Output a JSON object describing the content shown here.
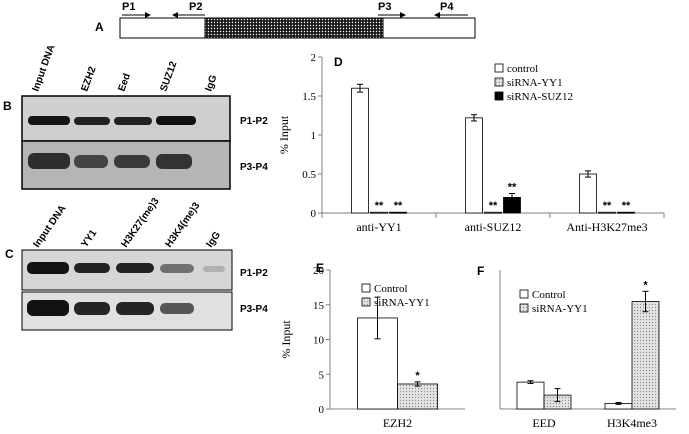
{
  "panel_labels": {
    "a": "A",
    "b": "B",
    "c": "C",
    "d": "D",
    "e": "E",
    "f": "F"
  },
  "primers": [
    "P1",
    "P2",
    "P3",
    "P4"
  ],
  "gel_b": {
    "lanes": [
      "Input DNA",
      "EZH2",
      "Eed",
      "SUZ12",
      "IgG"
    ],
    "rows": [
      "P1-P2",
      "P3-P4"
    ]
  },
  "gel_c": {
    "lanes": [
      "Input DNA",
      "YY1",
      "H3K27(me)3",
      "H3K4(me)3",
      "IgG"
    ],
    "rows": [
      "P1-P2",
      "P3-P4"
    ]
  },
  "colors": {
    "control": "#ffffff",
    "siRNA_YY1": "#d8d8d8",
    "siRNA_SUZ12": "#000000",
    "axis": "#808080"
  },
  "chart_data": [
    {
      "panel": "D",
      "type": "bar",
      "ylabel": "% Input",
      "ylim": [
        0,
        2
      ],
      "yticks": [
        "0",
        "0.5",
        "1",
        "1.5",
        "2"
      ],
      "categories": [
        "anti-YY1",
        "anti-SUZ12",
        "Anti-H3K27me3"
      ],
      "series": [
        {
          "name": "control",
          "values": [
            1.6,
            1.22,
            0.5
          ],
          "errors": [
            0.05,
            0.04,
            0.04
          ],
          "marks": [
            "",
            "",
            ""
          ]
        },
        {
          "name": "siRNA-YY1",
          "values": [
            0.01,
            0.01,
            0.01
          ],
          "errors": [
            0,
            0,
            0
          ],
          "marks": [
            "**",
            "**",
            "**"
          ]
        },
        {
          "name": "siRNA-SUZ12",
          "values": [
            0.01,
            0.2,
            0.01
          ],
          "errors": [
            0,
            0.05,
            0
          ],
          "marks": [
            "**",
            "**",
            "**"
          ]
        }
      ],
      "legend": "top-right"
    },
    {
      "panel": "E",
      "type": "bar",
      "ylabel": "% Input",
      "ylim": [
        0,
        20
      ],
      "yticks": [
        "0",
        "5",
        "10",
        "15",
        "20"
      ],
      "categories": [
        "EZH2"
      ],
      "series": [
        {
          "name": "Control",
          "values": [
            13.1
          ],
          "errors": [
            3.0
          ],
          "marks": [
            ""
          ]
        },
        {
          "name": "siRNA-YY1",
          "values": [
            3.6
          ],
          "errors": [
            0.3
          ],
          "marks": [
            "*"
          ]
        }
      ],
      "legend": "top-right"
    },
    {
      "panel": "F",
      "type": "bar",
      "ylim": [
        0,
        3
      ],
      "categories": [
        "EED",
        "H3K4me3"
      ],
      "series": [
        {
          "name": "Control",
          "values": [
            0.58,
            0.12
          ],
          "errors": [
            0.03,
            0.02
          ],
          "marks": [
            "",
            ""
          ]
        },
        {
          "name": "siRNA-YY1",
          "values": [
            0.3,
            2.32
          ],
          "errors": [
            0.14,
            0.22
          ],
          "marks": [
            "",
            "*"
          ]
        }
      ],
      "legend": "top-left"
    }
  ]
}
